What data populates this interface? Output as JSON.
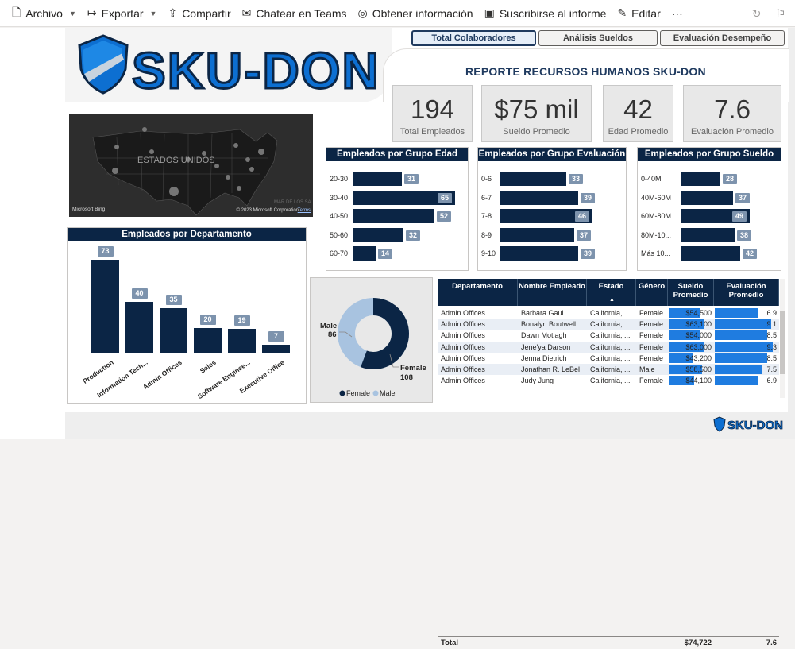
{
  "toolbar": {
    "items": [
      {
        "label": "Archivo",
        "icon": "file-icon",
        "glyph": "🗋",
        "chevron": true
      },
      {
        "label": "Exportar",
        "icon": "export-icon",
        "glyph": "↦",
        "chevron": true
      },
      {
        "label": "Compartir",
        "icon": "share-icon",
        "glyph": "⇪",
        "chevron": false
      },
      {
        "label": "Chatear en Teams",
        "icon": "teams-icon",
        "glyph": "✉",
        "chevron": false
      },
      {
        "label": "Obtener información",
        "icon": "lightbulb-icon",
        "glyph": "◎",
        "chevron": false
      },
      {
        "label": "Suscribirse al informe",
        "icon": "subscribe-icon",
        "glyph": "▣",
        "chevron": false
      },
      {
        "label": "Editar",
        "icon": "edit-icon",
        "glyph": "✎",
        "chevron": false
      }
    ],
    "more": "···"
  },
  "nav": {
    "buttons": [
      {
        "label": "Total Colaboradores",
        "active": true
      },
      {
        "label": "Análisis Sueldos",
        "active": false
      },
      {
        "label": "Evaluación Desempeño",
        "active": false
      }
    ]
  },
  "logo": {
    "text": "SKU-DON",
    "color": "#0d6fd1"
  },
  "report_title": "REPORTE RECURSOS HUMANOS SKU-DON",
  "kpis": [
    {
      "value": "194",
      "label": "Total Empleados"
    },
    {
      "value": "$75 mil",
      "label": "Sueldo Promedio"
    },
    {
      "value": "42",
      "label": "Edad Promedio"
    },
    {
      "value": "7.6",
      "label": "Evaluación Promedio"
    }
  ],
  "map": {
    "label": "ESTADOS UNIDOS",
    "bing": "Microsoft Bing",
    "copyright": "© 2023 Microsoft Corporation",
    "terms": "Terms",
    "faint": "MAR  DE  LOS  SA"
  },
  "chart_data": [
    {
      "type": "bar",
      "orientation": "horizontal",
      "title": "Empleados por Grupo Edad",
      "categories": [
        "20-30",
        "30-40",
        "40-50",
        "50-60",
        "60-70"
      ],
      "values": [
        31,
        65,
        52,
        32,
        14
      ]
    },
    {
      "type": "bar",
      "orientation": "horizontal",
      "title": "Empleados por Grupo Evaluación",
      "categories": [
        "0-6",
        "6-7",
        "7-8",
        "8-9",
        "9-10"
      ],
      "values": [
        33,
        39,
        46,
        37,
        39
      ]
    },
    {
      "type": "bar",
      "orientation": "horizontal",
      "title": "Empleados por Grupo Sueldo",
      "categories": [
        "0-40M",
        "40M-60M",
        "60M-80M",
        "80M-10...",
        "Más 10..."
      ],
      "values": [
        28,
        37,
        49,
        38,
        42
      ]
    },
    {
      "type": "bar",
      "orientation": "vertical",
      "title": "Empleados por Departamento",
      "categories": [
        "Production",
        "Information Tech...",
        "Admin Offices",
        "Sales",
        "Software Enginee...",
        "Executive Office"
      ],
      "values": [
        73,
        40,
        35,
        20,
        19,
        7
      ]
    },
    {
      "type": "pie",
      "donut": true,
      "categories": [
        "Male",
        "Female"
      ],
      "values": [
        86,
        108
      ],
      "legend": [
        "Female",
        "Male"
      ],
      "legend_position": "bottom",
      "colors": {
        "Female": "#0b2545",
        "Male": "#a8c3e0"
      }
    }
  ],
  "table": {
    "columns": [
      "Departamento",
      "Nombre Empleado",
      "Estado",
      "Género",
      "Sueldo Promedio",
      "Evaluación Promedio"
    ],
    "sort_indicator": "▲",
    "rows": [
      {
        "dept": "Admin Offices",
        "name": "Barbara Gaul",
        "state": "California, ...",
        "gender": "Female",
        "salary": "$54,500",
        "salary_value": 54500,
        "eval": "6.9",
        "eval_value": 6.9
      },
      {
        "dept": "Admin Offices",
        "name": "Bonalyn Boutwell",
        "state": "California, ...",
        "gender": "Female",
        "salary": "$63,100",
        "salary_value": 63100,
        "eval": "9.1",
        "eval_value": 9.1
      },
      {
        "dept": "Admin Offices",
        "name": "Dawn Motlagh",
        "state": "California, ...",
        "gender": "Female",
        "salary": "$54,000",
        "salary_value": 54000,
        "eval": "8.5",
        "eval_value": 8.5
      },
      {
        "dept": "Admin Offices",
        "name": "Jene'ya Darson",
        "state": "California, ...",
        "gender": "Female",
        "salary": "$63,000",
        "salary_value": 63000,
        "eval": "9.3",
        "eval_value": 9.3
      },
      {
        "dept": "Admin Offices",
        "name": "Jenna Dietrich",
        "state": "California, ...",
        "gender": "Female",
        "salary": "$43,200",
        "salary_value": 43200,
        "eval": "8.5",
        "eval_value": 8.5
      },
      {
        "dept": "Admin Offices",
        "name": "Jonathan R. LeBel",
        "state": "California, ...",
        "gender": "Male",
        "salary": "$58,500",
        "salary_value": 58500,
        "eval": "7.5",
        "eval_value": 7.5
      },
      {
        "dept": "Admin Offices",
        "name": "Judy Jung",
        "state": "California, ...",
        "gender": "Female",
        "salary": "$44,100",
        "salary_value": 44100,
        "eval": "6.9",
        "eval_value": 6.9
      }
    ],
    "total": {
      "label": "Total",
      "salary": "$74,722",
      "eval": "7.6"
    }
  },
  "footer_logo": "SKU-DON"
}
